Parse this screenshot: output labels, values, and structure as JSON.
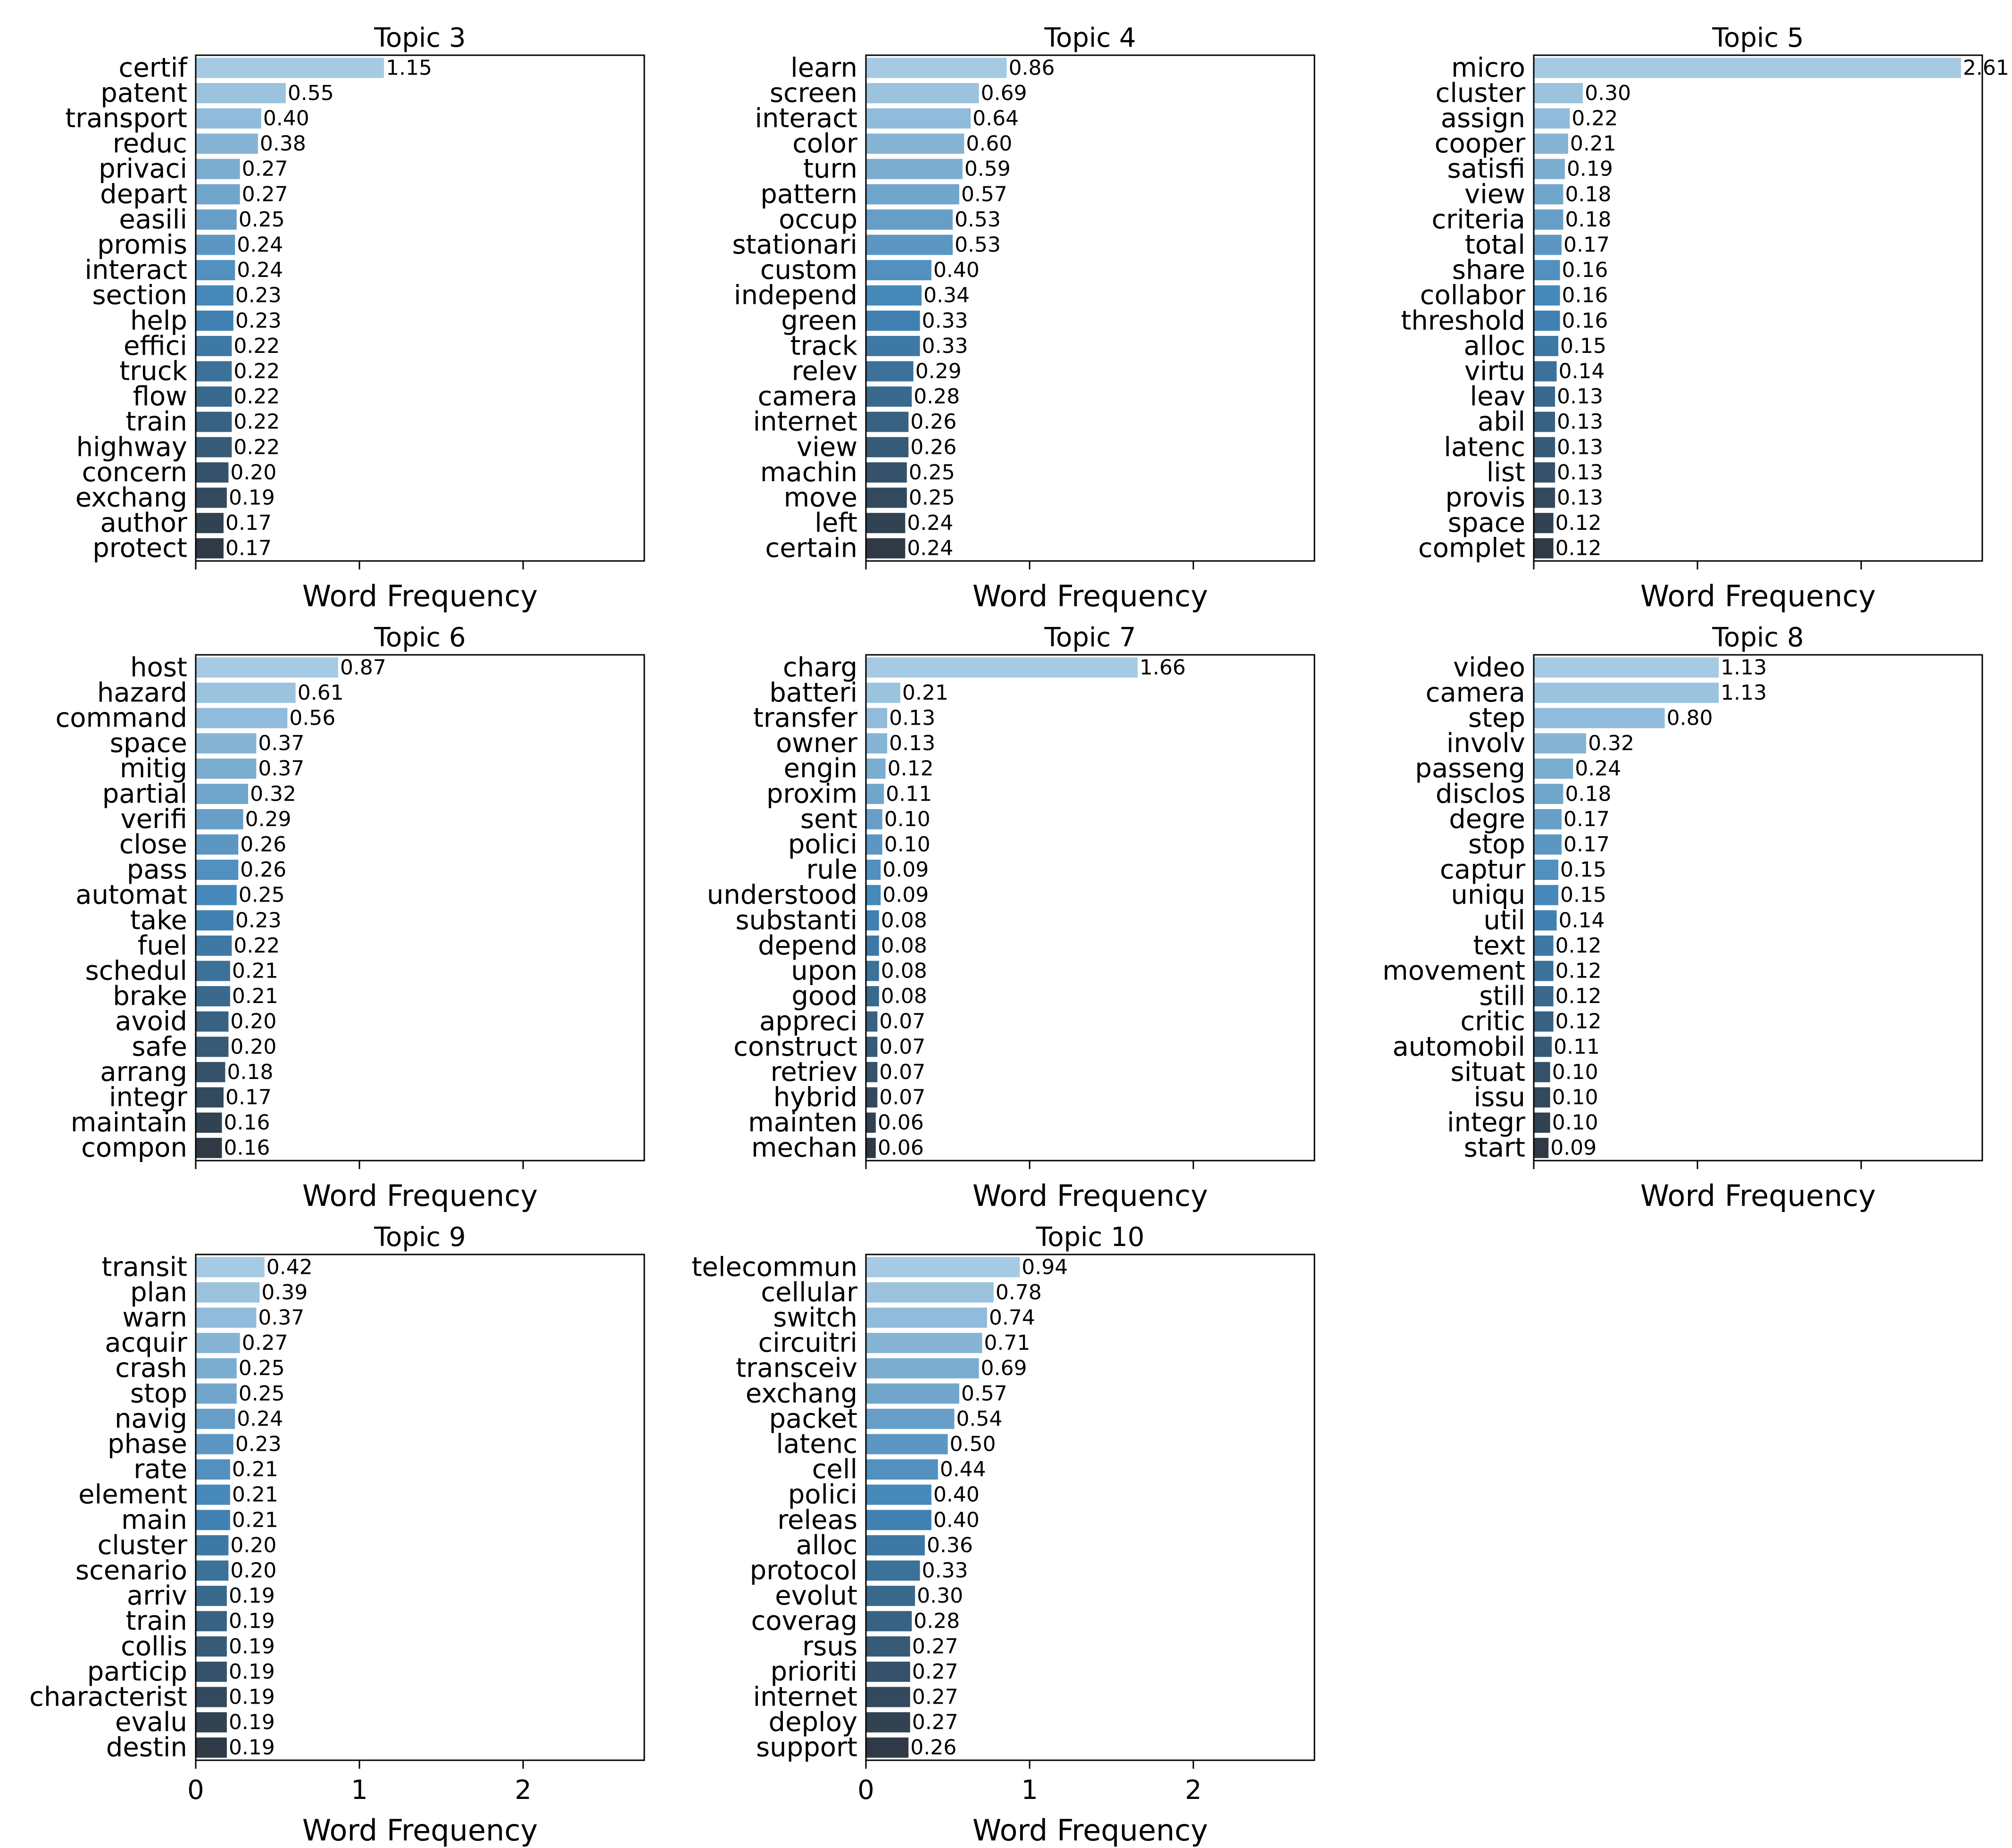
{
  "chart_data": [
    {
      "type": "bar",
      "orientation": "horizontal",
      "title": "Topic 3",
      "xlabel": "Word Frequency",
      "ylabel": "",
      "xlim": [
        0,
        2.74
      ],
      "xticks": [
        0,
        1,
        2
      ],
      "show_xtick_labels": false,
      "categories": [
        "certif",
        "patent",
        "transport",
        "reduc",
        "privaci",
        "depart",
        "easili",
        "promis",
        "interact",
        "section",
        "help",
        "effici",
        "truck",
        "flow",
        "train",
        "highway",
        "concern",
        "exchang",
        "author",
        "protect"
      ],
      "values": [
        1.15,
        0.55,
        0.4,
        0.38,
        0.27,
        0.27,
        0.25,
        0.24,
        0.24,
        0.23,
        0.23,
        0.22,
        0.22,
        0.22,
        0.22,
        0.22,
        0.2,
        0.19,
        0.17,
        0.17
      ],
      "value_labels": [
        "1.15",
        "0.55",
        "0.40",
        "0.38",
        "0.27",
        "0.27",
        "0.25",
        "0.24",
        "0.24",
        "0.23",
        "0.23",
        "0.22",
        "0.22",
        "0.22",
        "0.22",
        "0.22",
        "0.20",
        "0.19",
        "0.17",
        "0.17"
      ]
    },
    {
      "type": "bar",
      "orientation": "horizontal",
      "title": "Topic 4",
      "xlabel": "Word Frequency",
      "ylabel": "",
      "xlim": [
        0,
        2.74
      ],
      "xticks": [
        0,
        1,
        2
      ],
      "show_xtick_labels": false,
      "categories": [
        "learn",
        "screen",
        "interact",
        "color",
        "turn",
        "pattern",
        "occup",
        "stationari",
        "custom",
        "independ",
        "green",
        "track",
        "relev",
        "camera",
        "internet",
        "view",
        "machin",
        "move",
        "left",
        "certain"
      ],
      "values": [
        0.86,
        0.69,
        0.64,
        0.6,
        0.59,
        0.57,
        0.53,
        0.53,
        0.4,
        0.34,
        0.33,
        0.33,
        0.29,
        0.28,
        0.26,
        0.26,
        0.25,
        0.25,
        0.24,
        0.24
      ],
      "value_labels": [
        "0.86",
        "0.69",
        "0.64",
        "0.60",
        "0.59",
        "0.57",
        "0.53",
        "0.53",
        "0.40",
        "0.34",
        "0.33",
        "0.33",
        "0.29",
        "0.28",
        "0.26",
        "0.26",
        "0.25",
        "0.25",
        "0.24",
        "0.24"
      ]
    },
    {
      "type": "bar",
      "orientation": "horizontal",
      "title": "Topic 5",
      "xlabel": "Word Frequency",
      "ylabel": "",
      "xlim": [
        0,
        2.74
      ],
      "xticks": [
        0,
        1,
        2
      ],
      "show_xtick_labels": false,
      "categories": [
        "micro",
        "cluster",
        "assign",
        "cooper",
        "satisfi",
        "view",
        "criteria",
        "total",
        "share",
        "collabor",
        "threshold",
        "alloc",
        "virtu",
        "leav",
        "abil",
        "latenc",
        "list",
        "provis",
        "space",
        "complet"
      ],
      "values": [
        2.61,
        0.3,
        0.22,
        0.21,
        0.19,
        0.18,
        0.18,
        0.17,
        0.16,
        0.16,
        0.16,
        0.15,
        0.14,
        0.13,
        0.13,
        0.13,
        0.13,
        0.13,
        0.12,
        0.12
      ],
      "value_labels": [
        "2.61",
        "0.30",
        "0.22",
        "0.21",
        "0.19",
        "0.18",
        "0.18",
        "0.17",
        "0.16",
        "0.16",
        "0.16",
        "0.15",
        "0.14",
        "0.13",
        "0.13",
        "0.13",
        "0.13",
        "0.13",
        "0.12",
        "0.12"
      ]
    },
    {
      "type": "bar",
      "orientation": "horizontal",
      "title": "Topic 6",
      "xlabel": "Word Frequency",
      "ylabel": "",
      "xlim": [
        0,
        2.74
      ],
      "xticks": [
        0,
        1,
        2
      ],
      "show_xtick_labels": false,
      "categories": [
        "host",
        "hazard",
        "command",
        "space",
        "mitig",
        "partial",
        "verifi",
        "close",
        "pass",
        "automat",
        "take",
        "fuel",
        "schedul",
        "brake",
        "avoid",
        "safe",
        "arrang",
        "integr",
        "maintain",
        "compon"
      ],
      "values": [
        0.87,
        0.61,
        0.56,
        0.37,
        0.37,
        0.32,
        0.29,
        0.26,
        0.26,
        0.25,
        0.23,
        0.22,
        0.21,
        0.21,
        0.2,
        0.2,
        0.18,
        0.17,
        0.16,
        0.16
      ],
      "value_labels": [
        "0.87",
        "0.61",
        "0.56",
        "0.37",
        "0.37",
        "0.32",
        "0.29",
        "0.26",
        "0.26",
        "0.25",
        "0.23",
        "0.22",
        "0.21",
        "0.21",
        "0.20",
        "0.20",
        "0.18",
        "0.17",
        "0.16",
        "0.16"
      ]
    },
    {
      "type": "bar",
      "orientation": "horizontal",
      "title": "Topic 7",
      "xlabel": "Word Frequency",
      "ylabel": "",
      "xlim": [
        0,
        2.74
      ],
      "xticks": [
        0,
        1,
        2
      ],
      "show_xtick_labels": false,
      "categories": [
        "charg",
        "batteri",
        "transfer",
        "owner",
        "engin",
        "proxim",
        "sent",
        "polici",
        "rule",
        "understood",
        "substanti",
        "depend",
        "upon",
        "good",
        "appreci",
        "construct",
        "retriev",
        "hybrid",
        "mainten",
        "mechan"
      ],
      "values": [
        1.66,
        0.21,
        0.13,
        0.13,
        0.12,
        0.11,
        0.1,
        0.1,
        0.09,
        0.09,
        0.08,
        0.08,
        0.08,
        0.08,
        0.07,
        0.07,
        0.07,
        0.07,
        0.06,
        0.06
      ],
      "value_labels": [
        "1.66",
        "0.21",
        "0.13",
        "0.13",
        "0.12",
        "0.11",
        "0.10",
        "0.10",
        "0.09",
        "0.09",
        "0.08",
        "0.08",
        "0.08",
        "0.08",
        "0.07",
        "0.07",
        "0.07",
        "0.07",
        "0.06",
        "0.06"
      ]
    },
    {
      "type": "bar",
      "orientation": "horizontal",
      "title": "Topic 8",
      "xlabel": "Word Frequency",
      "ylabel": "",
      "xlim": [
        0,
        2.74
      ],
      "xticks": [
        0,
        1,
        2
      ],
      "show_xtick_labels": false,
      "categories": [
        "video",
        "camera",
        "step",
        "involv",
        "passeng",
        "disclos",
        "degre",
        "stop",
        "captur",
        "uniqu",
        "util",
        "text",
        "movement",
        "still",
        "critic",
        "automobil",
        "situat",
        "issu",
        "integr",
        "start"
      ],
      "values": [
        1.13,
        1.13,
        0.8,
        0.32,
        0.24,
        0.18,
        0.17,
        0.17,
        0.15,
        0.15,
        0.14,
        0.12,
        0.12,
        0.12,
        0.12,
        0.11,
        0.1,
        0.1,
        0.1,
        0.09
      ],
      "value_labels": [
        "1.13",
        "1.13",
        "0.80",
        "0.32",
        "0.24",
        "0.18",
        "0.17",
        "0.17",
        "0.15",
        "0.15",
        "0.14",
        "0.12",
        "0.12",
        "0.12",
        "0.12",
        "0.11",
        "0.10",
        "0.10",
        "0.10",
        "0.09"
      ]
    },
    {
      "type": "bar",
      "orientation": "horizontal",
      "title": "Topic 9",
      "xlabel": "Word Frequency",
      "ylabel": "",
      "xlim": [
        0,
        2.74
      ],
      "xticks": [
        0,
        1,
        2
      ],
      "show_xtick_labels": true,
      "xtick_labels": [
        "0",
        "1",
        "2"
      ],
      "categories": [
        "transit",
        "plan",
        "warn",
        "acquir",
        "crash",
        "stop",
        "navig",
        "phase",
        "rate",
        "element",
        "main",
        "cluster",
        "scenario",
        "arriv",
        "train",
        "collis",
        "particip",
        "characterist",
        "evalu",
        "destin"
      ],
      "values": [
        0.42,
        0.39,
        0.37,
        0.27,
        0.25,
        0.25,
        0.24,
        0.23,
        0.21,
        0.21,
        0.21,
        0.2,
        0.2,
        0.19,
        0.19,
        0.19,
        0.19,
        0.19,
        0.19,
        0.19
      ],
      "value_labels": [
        "0.42",
        "0.39",
        "0.37",
        "0.27",
        "0.25",
        "0.25",
        "0.24",
        "0.23",
        "0.21",
        "0.21",
        "0.21",
        "0.20",
        "0.20",
        "0.19",
        "0.19",
        "0.19",
        "0.19",
        "0.19",
        "0.19",
        "0.19"
      ]
    },
    {
      "type": "bar",
      "orientation": "horizontal",
      "title": "Topic 10",
      "xlabel": "Word Frequency",
      "ylabel": "",
      "xlim": [
        0,
        2.74
      ],
      "xticks": [
        0,
        1,
        2
      ],
      "show_xtick_labels": true,
      "xtick_labels": [
        "0",
        "1",
        "2"
      ],
      "categories": [
        "telecommun",
        "cellular",
        "switch",
        "circuitri",
        "transceiv",
        "exchang",
        "packet",
        "latenc",
        "cell",
        "polici",
        "releas",
        "alloc",
        "protocol",
        "evolut",
        "coverag",
        "rsus",
        "prioriti",
        "internet",
        "deploy",
        "support"
      ],
      "values": [
        0.94,
        0.78,
        0.74,
        0.71,
        0.69,
        0.57,
        0.54,
        0.5,
        0.44,
        0.4,
        0.4,
        0.36,
        0.33,
        0.3,
        0.28,
        0.27,
        0.27,
        0.27,
        0.27,
        0.26
      ],
      "value_labels": [
        "0.94",
        "0.78",
        "0.74",
        "0.71",
        "0.69",
        "0.57",
        "0.54",
        "0.50",
        "0.44",
        "0.40",
        "0.40",
        "0.36",
        "0.33",
        "0.30",
        "0.28",
        "0.27",
        "0.27",
        "0.27",
        "0.27",
        "0.26"
      ]
    }
  ],
  "palette": {
    "bar_start": "#a6cae3",
    "bar_mid": "#4185b8",
    "bar_end": "#2f3a46",
    "axis": "#000000",
    "background": "#ffffff"
  }
}
